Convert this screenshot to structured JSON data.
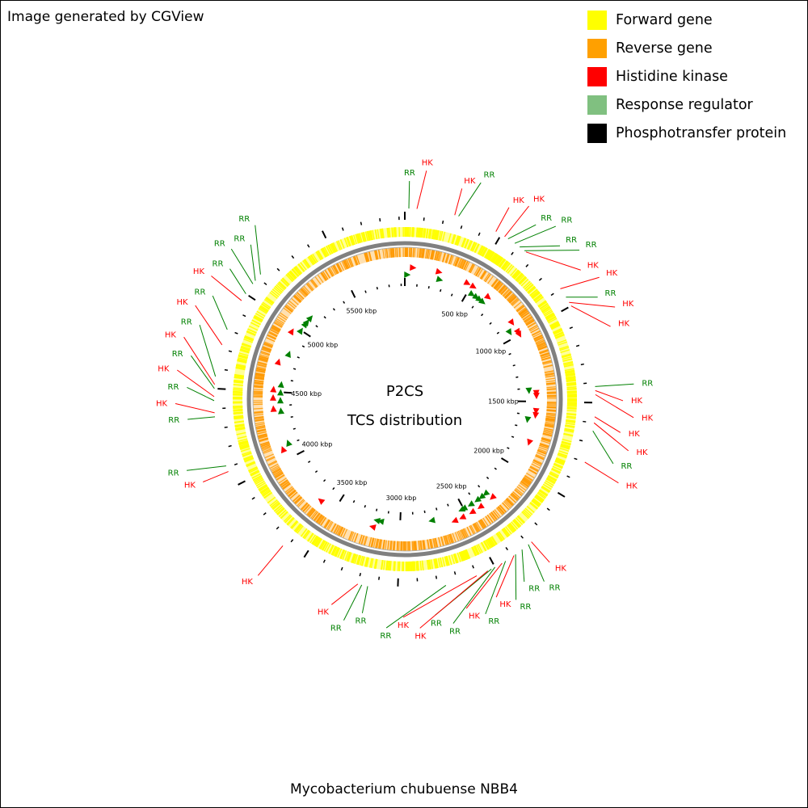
{
  "credit": "Image generated by CGView",
  "footer_title": "Mycobacterium chubuense NBB4",
  "center": {
    "line1": "P2CS",
    "line2": "TCS distribution"
  },
  "legend": [
    {
      "label": "Forward gene",
      "color": "#ffff00"
    },
    {
      "label": "Reverse gene",
      "color": "#ffa000"
    },
    {
      "label": "Histidine kinase",
      "color": "#ff0000"
    },
    {
      "label": "Response regulator",
      "color": "#80c080"
    },
    {
      "label": "Phosphotransfer protein",
      "color": "#000000"
    }
  ],
  "colors": {
    "forward": "#ffff00",
    "reverse": "#ff9900",
    "hk": "#ff0000",
    "rr": "#008000",
    "backbone": "#808080"
  },
  "genome": {
    "length_kbp": 5930,
    "tick_labels": [
      "500 kbp",
      "1000 kbp",
      "1500 kbp",
      "2000 kbp",
      "2500 kbp",
      "3000 kbp",
      "3500 kbp",
      "4000 kbp",
      "4500 kbp",
      "5000 kbp",
      "5500 kbp"
    ],
    "tick_values_kbp": [
      500,
      1000,
      1500,
      2000,
      2500,
      3000,
      3500,
      4000,
      4500,
      5000,
      5500
    ]
  },
  "tcs_features": [
    {
      "type": "RR",
      "kbp": 20
    },
    {
      "type": "HK",
      "kbp": 60
    },
    {
      "type": "HK",
      "kbp": 250
    },
    {
      "type": "RR",
      "kbp": 270
    },
    {
      "type": "HK",
      "kbp": 470
    },
    {
      "type": "HK",
      "kbp": 520
    },
    {
      "type": "RR",
      "kbp": 540
    },
    {
      "type": "RR",
      "kbp": 580
    },
    {
      "type": "RR",
      "kbp": 610
    },
    {
      "type": "RR",
      "kbp": 640
    },
    {
      "type": "HK",
      "kbp": 650
    },
    {
      "type": "HK",
      "kbp": 900
    },
    {
      "type": "RR",
      "kbp": 950
    },
    {
      "type": "HK",
      "kbp": 980
    },
    {
      "type": "HK",
      "kbp": 1000
    },
    {
      "type": "RR",
      "kbp": 1420
    },
    {
      "type": "HK",
      "kbp": 1440
    },
    {
      "type": "HK",
      "kbp": 1460
    },
    {
      "type": "HK",
      "kbp": 1570
    },
    {
      "type": "HK",
      "kbp": 1600
    },
    {
      "type": "RR",
      "kbp": 1640
    },
    {
      "type": "HK",
      "kbp": 1800
    },
    {
      "type": "HK",
      "kbp": 2280
    },
    {
      "type": "RR",
      "kbp": 2300
    },
    {
      "type": "RR",
      "kbp": 2340
    },
    {
      "type": "RR",
      "kbp": 2380
    },
    {
      "type": "HK",
      "kbp": 2390
    },
    {
      "type": "RR",
      "kbp": 2440
    },
    {
      "type": "HK",
      "kbp": 2460
    },
    {
      "type": "RR",
      "kbp": 2500
    },
    {
      "type": "RR",
      "kbp": 2520
    },
    {
      "type": "HK",
      "kbp": 2540
    },
    {
      "type": "HK",
      "kbp": 2600
    },
    {
      "type": "RR",
      "kbp": 2760
    },
    {
      "type": "RR",
      "kbp": 3150
    },
    {
      "type": "RR",
      "kbp": 3180
    },
    {
      "type": "HK",
      "kbp": 3200
    },
    {
      "type": "HK",
      "kbp": 3620
    },
    {
      "type": "HK",
      "kbp": 4080
    },
    {
      "type": "RR",
      "kbp": 4110
    },
    {
      "type": "RR",
      "kbp": 4360
    },
    {
      "type": "HK",
      "kbp": 4380
    },
    {
      "type": "RR",
      "kbp": 4440
    },
    {
      "type": "HK",
      "kbp": 4460
    },
    {
      "type": "RR",
      "kbp": 4500
    },
    {
      "type": "HK",
      "kbp": 4520
    },
    {
      "type": "RR",
      "kbp": 4560
    },
    {
      "type": "HK",
      "kbp": 4720
    },
    {
      "type": "RR",
      "kbp": 4800
    },
    {
      "type": "HK",
      "kbp": 4960
    },
    {
      "type": "RR",
      "kbp": 5000
    },
    {
      "type": "RR",
      "kbp": 5060
    },
    {
      "type": "RR",
      "kbp": 5080
    },
    {
      "type": "RR",
      "kbp": 5120
    }
  ]
}
